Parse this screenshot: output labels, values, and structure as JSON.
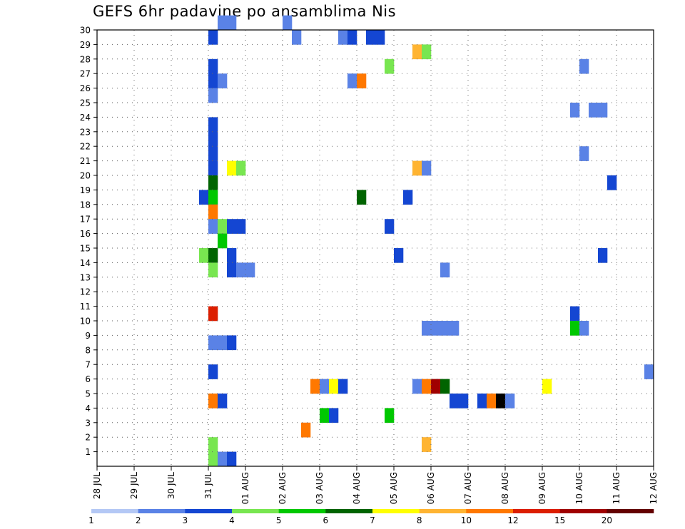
{
  "chart_data": {
    "type": "heatmap",
    "title": "GEFS 6hr padavine po ansamblima Nis",
    "x_tick_labels": [
      "28 JUL",
      "29 JUL",
      "30 JUL",
      "31 JUL",
      "01 AUG",
      "02 AUG",
      "03 AUG",
      "04 AUG",
      "05 AUG",
      "06 AUG",
      "07 AUG",
      "08 AUG",
      "09 AUG",
      "10 AUG",
      "11 AUG",
      "12 AUG"
    ],
    "y_tick_labels": [
      "1",
      "2",
      "3",
      "4",
      "5",
      "6",
      "7",
      "8",
      "9",
      "10",
      "11",
      "12",
      "13",
      "14",
      "15",
      "16",
      "17",
      "18",
      "19",
      "20",
      "21",
      "22",
      "23",
      "24",
      "25",
      "26",
      "27",
      "28",
      "29",
      "30"
    ],
    "ylim": [
      0,
      30
    ],
    "x_unit": "day index (0 = 28 JUL)",
    "grid": true,
    "colorbar": {
      "labels": [
        "1",
        "2",
        "3",
        "4",
        "5",
        "6",
        "7",
        "8",
        "10",
        "12",
        "15",
        "20"
      ],
      "colors": [
        "#b4c8f5",
        "#5a82e6",
        "#1446d2",
        "#78e650",
        "#00c800",
        "#006400",
        "#ffff00",
        "#ffb432",
        "#ff7800",
        "#dc1e00",
        "#a00000",
        "#640000"
      ]
    },
    "cells": [
      [
        3.25,
        30,
        1
      ],
      [
        3.5,
        30,
        1
      ],
      [
        5.0,
        30,
        1
      ],
      [
        3.0,
        29,
        2
      ],
      [
        5.25,
        29,
        1
      ],
      [
        6.5,
        29,
        1
      ],
      [
        6.75,
        29,
        2
      ],
      [
        7.25,
        29,
        2
      ],
      [
        7.5,
        29,
        2
      ],
      [
        8.5,
        28,
        7
      ],
      [
        8.75,
        28,
        3
      ],
      [
        3.0,
        27,
        2
      ],
      [
        7.75,
        27,
        3
      ],
      [
        13.0,
        27,
        1
      ],
      [
        3.0,
        26,
        2
      ],
      [
        3.25,
        26,
        1
      ],
      [
        6.75,
        26,
        1
      ],
      [
        7.0,
        26,
        8
      ],
      [
        3.0,
        25,
        1
      ],
      [
        12.75,
        24,
        1
      ],
      [
        13.25,
        24,
        1
      ],
      [
        13.5,
        24,
        1
      ],
      [
        3.0,
        23,
        2
      ],
      [
        3.0,
        22,
        2
      ],
      [
        3.0,
        21,
        2
      ],
      [
        13.0,
        21,
        1
      ],
      [
        3.0,
        20,
        2
      ],
      [
        3.5,
        20,
        6
      ],
      [
        3.75,
        20,
        3
      ],
      [
        8.5,
        20,
        7
      ],
      [
        8.75,
        20,
        1
      ],
      [
        3.0,
        19,
        5
      ],
      [
        13.75,
        19,
        2
      ],
      [
        2.75,
        18,
        2
      ],
      [
        3.0,
        18,
        4
      ],
      [
        7.0,
        18,
        5
      ],
      [
        8.25,
        18,
        2
      ],
      [
        3.0,
        17,
        8
      ],
      [
        3.0,
        16,
        1
      ],
      [
        3.25,
        16,
        3
      ],
      [
        3.5,
        16,
        2
      ],
      [
        3.75,
        16,
        2
      ],
      [
        7.75,
        16,
        2
      ],
      [
        3.25,
        15,
        4
      ],
      [
        2.75,
        14,
        3
      ],
      [
        3.0,
        14,
        5
      ],
      [
        3.5,
        14,
        2
      ],
      [
        8.0,
        14,
        2
      ],
      [
        13.5,
        14,
        2
      ],
      [
        3.0,
        13,
        3
      ],
      [
        3.5,
        13,
        2
      ],
      [
        3.75,
        13,
        1
      ],
      [
        4.0,
        13,
        1
      ],
      [
        9.25,
        13,
        1
      ],
      [
        3.0,
        10,
        9
      ],
      [
        12.75,
        10,
        2
      ],
      [
        8.75,
        9,
        1
      ],
      [
        9.0,
        9,
        1
      ],
      [
        9.25,
        9,
        1
      ],
      [
        9.5,
        9,
        1
      ],
      [
        12.75,
        9,
        4
      ],
      [
        13.0,
        9,
        1
      ],
      [
        3.0,
        8,
        1
      ],
      [
        3.25,
        8,
        1
      ],
      [
        3.5,
        8,
        2
      ],
      [
        3.0,
        6,
        2
      ],
      [
        14.75,
        6,
        1
      ],
      [
        5.75,
        5,
        8
      ],
      [
        6.0,
        5,
        1
      ],
      [
        6.25,
        5,
        6
      ],
      [
        6.5,
        5,
        2
      ],
      [
        8.5,
        5,
        1
      ],
      [
        8.75,
        5,
        8
      ],
      [
        9.0,
        5,
        10
      ],
      [
        9.25,
        5,
        5
      ],
      [
        12.0,
        5,
        6
      ],
      [
        3.0,
        4,
        8
      ],
      [
        3.25,
        4,
        2
      ],
      [
        9.5,
        4,
        2
      ],
      [
        9.75,
        4,
        2
      ],
      [
        10.25,
        4,
        2
      ],
      [
        10.5,
        4,
        8
      ],
      [
        10.75,
        4,
        12
      ],
      [
        11.0,
        4,
        1
      ],
      [
        6.0,
        3,
        4
      ],
      [
        6.25,
        3,
        2
      ],
      [
        7.75,
        3,
        4
      ],
      [
        5.5,
        2,
        8
      ],
      [
        3.0,
        1,
        3
      ],
      [
        8.75,
        1,
        7
      ],
      [
        3.0,
        0,
        3
      ],
      [
        3.25,
        0,
        1
      ],
      [
        3.5,
        0,
        2
      ]
    ]
  }
}
